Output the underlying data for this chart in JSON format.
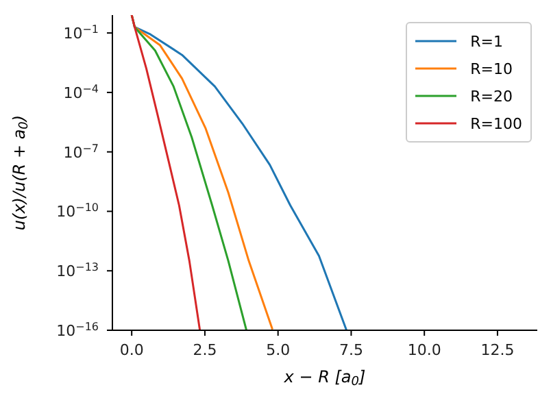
{
  "chart_data": {
    "type": "line",
    "xlabel": "x − R [a$_{0}$]",
    "ylabel": "u(x)/u(R + a$_{0}$)",
    "log": "y",
    "grid": false,
    "legend": "top right",
    "marker": "none",
    "line_style": "solid",
    "xlim": [
      -0.66,
      13.86
    ],
    "ylim": [
      1e-16,
      0.8
    ],
    "xticks": [
      {
        "value": 0,
        "label": "0.0"
      },
      {
        "value": 2.5,
        "label": "2.5"
      },
      {
        "value": 5,
        "label": "5.0"
      },
      {
        "value": 7.5,
        "label": "7.5"
      },
      {
        "value": 10,
        "label": "10.0"
      },
      {
        "value": 12.5,
        "label": "12.5"
      }
    ],
    "yticks": [
      {
        "value": 0.1,
        "label": "10$^{−1}$"
      },
      {
        "value": 0.0001,
        "label": "10$^{−4}$"
      },
      {
        "value": 1e-07,
        "label": "10$^{−7}$"
      },
      {
        "value": 1e-10,
        "label": "10$^{−10}$"
      },
      {
        "value": 1e-13,
        "label": "10$^{−13}$"
      },
      {
        "value": 1e-16,
        "label": "10$^{−16}$"
      }
    ],
    "series": [
      {
        "name": "R=1",
        "color": "#1f77b4",
        "x": [
          0,
          0.1,
          0.64,
          1.72,
          2.84,
          3.78,
          4.72,
          5.42,
          6.4,
          7.34
        ],
        "values": [
          0.8,
          0.2,
          0.085,
          0.0078,
          0.0002,
          2.7e-06,
          2.2e-08,
          2e-10,
          5.6e-13,
          1e-16
        ]
      },
      {
        "name": "R=10",
        "color": "#ff7f0e",
        "x": [
          0,
          0.1,
          0.97,
          1.72,
          2.52,
          3.3,
          4.0,
          4.81
        ],
        "values": [
          0.8,
          0.2,
          0.024,
          0.0005,
          1.6e-06,
          8.9e-10,
          3.2e-13,
          1.1e-16
        ]
      },
      {
        "name": "R=20",
        "color": "#2ca02c",
        "x": [
          0,
          0.1,
          0.8,
          1.43,
          2.05,
          2.75,
          3.3,
          3.92
        ],
        "values": [
          0.8,
          0.2,
          0.013,
          0.0002,
          5.5e-07,
          2e-10,
          3.2e-13,
          1e-16
        ]
      },
      {
        "name": "R=100",
        "color": "#d62728",
        "x": [
          0,
          0.1,
          0.5,
          0.88,
          1.26,
          1.62,
          1.97,
          2.33
        ],
        "values": [
          0.8,
          0.2,
          0.0016,
          7.9e-06,
          3.5e-08,
          2e-10,
          3.2e-13,
          1e-16
        ]
      }
    ]
  }
}
